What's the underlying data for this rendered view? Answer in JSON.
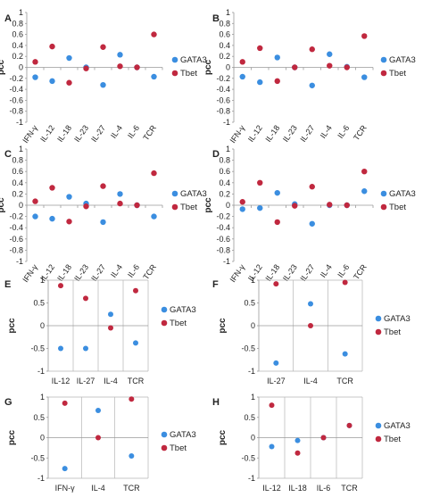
{
  "colors": {
    "gata3": "#3b8ee0",
    "tbet": "#c0283f"
  },
  "chart_data": [
    {
      "panel": "A",
      "type": "scatter",
      "ylabel": "pcc",
      "ylim": [
        -1,
        1
      ],
      "yticks": [
        "-1",
        "-0.8",
        "-0.6",
        "-0.4",
        "-0.2",
        "0",
        "0.2",
        "0.4",
        "0.6",
        "0.8",
        "1"
      ],
      "categories": [
        "IFN-γ",
        "IL-12",
        "IL-18",
        "IL-23",
        "IL-27",
        "IL-4",
        "IL-6",
        "TCR"
      ],
      "series": [
        {
          "name": "GATA3",
          "values": [
            -0.18,
            -0.25,
            0.17,
            0.0,
            -0.32,
            0.23,
            0.0,
            -0.17
          ]
        },
        {
          "name": "Tbet",
          "values": [
            0.1,
            0.38,
            -0.28,
            -0.02,
            0.37,
            0.02,
            0.0,
            0.6
          ]
        }
      ]
    },
    {
      "panel": "B",
      "type": "scatter",
      "ylabel": "pcc",
      "ylim": [
        -1,
        1
      ],
      "yticks": [
        "-1",
        "-0.8",
        "-0.6",
        "-0.4",
        "-0.2",
        "0",
        "0.2",
        "0.4",
        "0.6",
        "0.8",
        "1"
      ],
      "categories": [
        "IFN-γ",
        "IL-12",
        "IL-18",
        "IL-23",
        "IL-27",
        "IL-4",
        "IL-6",
        "TCR"
      ],
      "series": [
        {
          "name": "GATA3",
          "values": [
            -0.17,
            -0.27,
            0.18,
            0.0,
            -0.33,
            0.24,
            0.01,
            -0.18
          ]
        },
        {
          "name": "Tbet",
          "values": [
            0.1,
            0.35,
            -0.25,
            0.0,
            0.33,
            0.03,
            0.0,
            0.57
          ]
        }
      ]
    },
    {
      "panel": "C",
      "type": "scatter",
      "ylabel": "pcc",
      "ylim": [
        -1,
        1
      ],
      "yticks": [
        "-1",
        "-0.8",
        "-0.6",
        "-0.4",
        "-0.2",
        "0",
        "0.2",
        "0.4",
        "0.6",
        "0.8",
        "1"
      ],
      "categories": [
        "IFN-γ",
        "IL-12",
        "IL-18",
        "IL-23",
        "IL-27",
        "IL-4",
        "IL-6",
        "TCR"
      ],
      "series": [
        {
          "name": "GATA3",
          "values": [
            -0.2,
            -0.24,
            0.15,
            0.03,
            -0.3,
            0.2,
            0.0,
            -0.2
          ]
        },
        {
          "name": "Tbet",
          "values": [
            0.07,
            0.31,
            -0.29,
            -0.02,
            0.34,
            0.03,
            0.0,
            0.57
          ]
        }
      ]
    },
    {
      "panel": "D",
      "type": "scatter",
      "ylabel": "pcc",
      "ylim": [
        -1,
        1
      ],
      "yticks": [
        "-1",
        "-0.8",
        "-0.6",
        "-0.4",
        "-0.2",
        "0",
        "0.2",
        "0.4",
        "0.6",
        "0.8",
        "1"
      ],
      "categories": [
        "IFN-γ",
        "IL-12",
        "IL-18",
        "IL-23",
        "IL-27",
        "IL-4",
        "IL-6",
        "TCR"
      ],
      "series": [
        {
          "name": "GATA3",
          "values": [
            -0.07,
            -0.05,
            0.22,
            0.02,
            -0.33,
            0.0,
            0.0,
            0.25
          ]
        },
        {
          "name": "Tbet",
          "values": [
            0.06,
            0.4,
            -0.3,
            -0.01,
            0.33,
            0.01,
            0.0,
            0.6
          ]
        }
      ]
    },
    {
      "panel": "E",
      "type": "scatter",
      "ylabel": "pcc",
      "ylim": [
        -1,
        1
      ],
      "yticks": [
        "-1",
        "-0.5",
        "0",
        "0.5",
        "1"
      ],
      "categories": [
        "IL-12",
        "IL-27",
        "IL-4",
        "TCR"
      ],
      "series": [
        {
          "name": "GATA3",
          "values": [
            -0.5,
            -0.5,
            0.25,
            -0.38
          ]
        },
        {
          "name": "Tbet",
          "values": [
            0.88,
            0.6,
            -0.05,
            0.77
          ]
        }
      ]
    },
    {
      "panel": "F",
      "type": "scatter",
      "ylabel": "pcc",
      "ylim": [
        -1,
        1
      ],
      "yticks": [
        "-1",
        "-0.5",
        "0",
        "0.5",
        "1"
      ],
      "categories": [
        "IL-27",
        "IL-4",
        "TCR"
      ],
      "series": [
        {
          "name": "GATA3",
          "values": [
            -0.82,
            0.48,
            -0.62
          ]
        },
        {
          "name": "Tbet",
          "values": [
            0.92,
            0.0,
            0.95
          ]
        }
      ]
    },
    {
      "panel": "G",
      "type": "scatter",
      "ylabel": "pcc",
      "ylim": [
        -1,
        1
      ],
      "yticks": [
        "-1",
        "-0.5",
        "0",
        "0.5",
        "1"
      ],
      "categories": [
        "IFN-γ",
        "IL-4",
        "TCR"
      ],
      "series": [
        {
          "name": "GATA3",
          "values": [
            -0.76,
            0.67,
            -0.45
          ]
        },
        {
          "name": "Tbet",
          "values": [
            0.85,
            0.0,
            0.95
          ]
        }
      ]
    },
    {
      "panel": "H",
      "type": "scatter",
      "ylabel": "pcc",
      "ylim": [
        -1,
        1
      ],
      "yticks": [
        "-1",
        "-0.5",
        "0",
        "0.5",
        "1"
      ],
      "categories": [
        "IL-12",
        "IL-18",
        "IL-6",
        "TCR"
      ],
      "series": [
        {
          "name": "GATA3",
          "values": [
            -0.22,
            -0.07,
            0.0,
            0.3
          ]
        },
        {
          "name": "Tbet",
          "values": [
            0.8,
            -0.38,
            0.0,
            0.3
          ]
        }
      ]
    }
  ]
}
